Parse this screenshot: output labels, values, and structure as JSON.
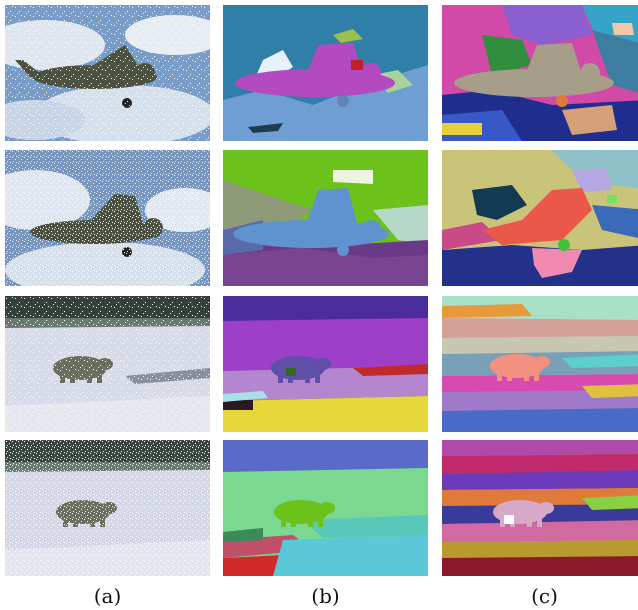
{
  "figure": {
    "captions": [
      "(a)",
      "(b)",
      "(c)"
    ],
    "rows": [
      {
        "subject": "airplane",
        "noise": "moderate"
      },
      {
        "subject": "airplane",
        "noise": "heavy"
      },
      {
        "subject": "polar-bear",
        "noise": "moderate"
      },
      {
        "subject": "polar-bear",
        "noise": "heavy"
      }
    ],
    "palette": {
      "sky_blue": "#6fa3d8",
      "plane_magenta": "#b34ac0",
      "seg_green": "#6cc11a",
      "seg_purple": "#5a2d8a",
      "snow": "#d9dcea",
      "yellow": "#e6d23a"
    }
  }
}
